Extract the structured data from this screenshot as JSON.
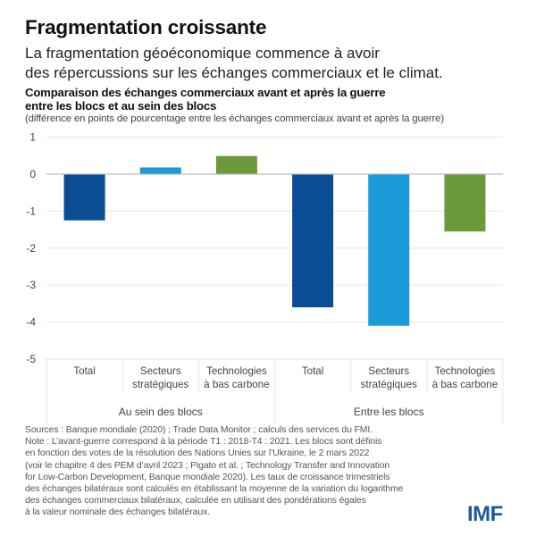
{
  "header": {
    "title": "Fragmentation croissante",
    "subtitle_lines": [
      "La fragmentation géoéconomique commence à avoir",
      "des répercussions sur les échanges commerciaux et le climat."
    ]
  },
  "chart_data": {
    "type": "bar",
    "title_lines": [
      "Comparaison des échanges commerciaux avant et après la guerre",
      "entre les blocs et au sein des blocs"
    ],
    "subtitle": "(différence en points de pourcentage entre les échanges commerciaux avant et après la guerre)",
    "xlabel": "",
    "ylabel": "",
    "ylim": [
      -5,
      1
    ],
    "yticks": [
      1,
      0,
      -1,
      -2,
      -3,
      -4,
      -5
    ],
    "grid": true,
    "legend": "none",
    "groups": [
      {
        "label": "Au sein des blocs",
        "categories": [
          0,
          1,
          2
        ]
      },
      {
        "label": "Entre les blocs",
        "categories": [
          3,
          4,
          5
        ]
      }
    ],
    "categories": [
      [
        "Total"
      ],
      [
        "Secteurs",
        "stratégiques"
      ],
      [
        "Technologies",
        "à bas carbone"
      ],
      [
        "Total"
      ],
      [
        "Secteurs",
        "stratégiques"
      ],
      [
        "Technologies",
        "à bas carbone"
      ]
    ],
    "values": [
      -1.25,
      0.18,
      0.49,
      -3.6,
      -4.1,
      -1.55
    ],
    "colors": [
      "#0b4d94",
      "#1a9ad6",
      "#6a9a3a",
      "#0b4d94",
      "#1a9ad6",
      "#6a9a3a"
    ]
  },
  "footer": {
    "notes_lines": [
      "Sources  : Banque mondiale (2020) ; Trade Data Monitor ; calculs des services du FMI.",
      "Note : L’avant-guerre correspond à la période T1 : 2018-T4 : 2021. Les blocs sont définis",
      "en fonction des votes de la résolution des Nations Unies sur l’Ukraine, le 2 mars 2022",
      "(voir le chapitre 4 des PEM d’avril 2023 ; Pigato et al. ; Technology Transfer and Innovation",
      "for Low-Carbon Development, Banque mondiale 2020). Les taux de croissance trimestriels",
      "des échanges bilatéraux sont calculés en établissant la moyenne de la variation du logarithme",
      "des échanges commerciaux bilatéraux, calculée en utilisant des pondérations égales",
      "à la valeur nominale des échanges bilatéraux."
    ],
    "logo": "IMF"
  }
}
